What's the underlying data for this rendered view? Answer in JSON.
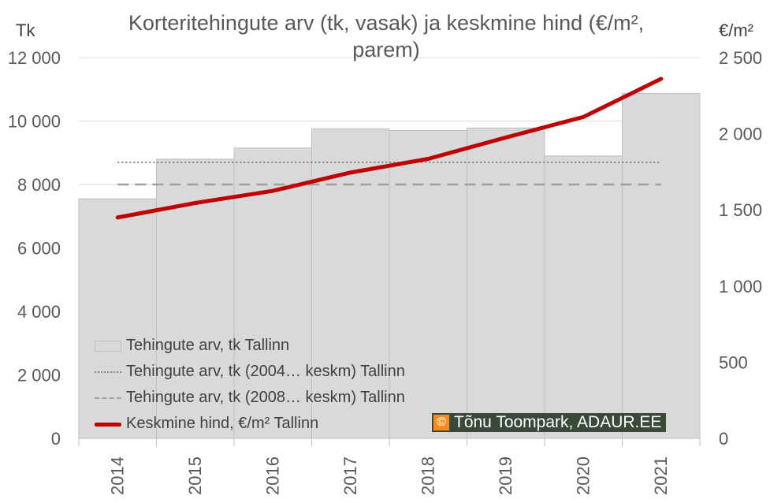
{
  "chart_data": {
    "type": "bar",
    "title": "Korteritehingute arv (tk, vasak) ja keskmine hind (€/m², parem)",
    "title_line1": "Korteritehingute arv (tk, vasak) ja keskmine hind (€/m²,",
    "title_line2": "parem)",
    "left_axis_label": "Tk",
    "right_axis_label": "€/m²",
    "categories": [
      "2014",
      "2015",
      "2016",
      "2017",
      "2018",
      "2019",
      "2020",
      "2021"
    ],
    "y_left_ticks": [
      "0",
      "2 000",
      "4 000",
      "6 000",
      "8 000",
      "10 000",
      "12 000"
    ],
    "y_right_ticks": [
      "0",
      "500",
      "1 000",
      "1 500",
      "2 000",
      "2 500"
    ],
    "ylim_left": [
      0,
      12000
    ],
    "ylim_right": [
      0,
      2500
    ],
    "grid": true,
    "series": [
      {
        "name": "Tehingute arv, tk Tallinn",
        "axis": "left",
        "kind": "bar",
        "values": [
          7550,
          8800,
          9150,
          9750,
          9700,
          9780,
          8900,
          10870
        ]
      },
      {
        "name": "Tehingute arv, tk (2004… keskm) Tallinn",
        "axis": "left",
        "kind": "dotted-line",
        "values": [
          8700,
          8700,
          8700,
          8700,
          8700,
          8700,
          8700,
          8700
        ]
      },
      {
        "name": "Tehingute arv, tk (2008… keskm) Tallinn",
        "axis": "left",
        "kind": "dashed-line",
        "values": [
          8000,
          8000,
          8000,
          8000,
          8000,
          8000,
          8000,
          8000
        ]
      },
      {
        "name": "Keskmine hind, €/m² Tallinn",
        "axis": "right",
        "kind": "line",
        "values": [
          1450,
          1545,
          1625,
          1745,
          1835,
          1975,
          2110,
          2360
        ]
      }
    ],
    "colors": {
      "bar": "#d9d9d9",
      "bar_border": "#bfbfbf",
      "line": "#c00000",
      "dotted": "#808080",
      "dashed": "#a0a0a0",
      "grid": "#d9d9d9"
    },
    "legend_placement": "bottom-left inside plot"
  },
  "watermark": {
    "icon": "©",
    "text": "Tõnu Toompark, ADAUR.EE"
  }
}
